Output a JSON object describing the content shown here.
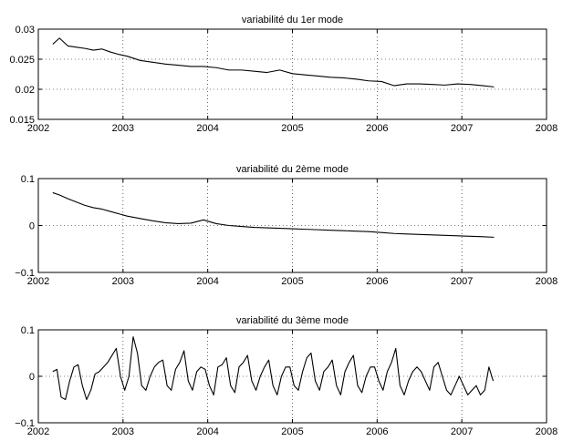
{
  "chart_data": [
    {
      "type": "line",
      "title": "variabilité du 1er mode",
      "xlabel": "",
      "ylabel": "",
      "xlim": [
        2002,
        2008
      ],
      "ylim": [
        0.015,
        0.03
      ],
      "xticks": [
        2002,
        2003,
        2004,
        2005,
        2006,
        2007,
        2008
      ],
      "yticks": [
        0.015,
        0.02,
        0.025,
        0.03
      ],
      "ytick_labels": [
        "0.015",
        "0.02",
        "0.025",
        "0.03"
      ],
      "grid": true,
      "line_color": "#000000",
      "series": [
        {
          "x": [
            2002.17,
            2002.25,
            2002.35,
            2002.45,
            2002.55,
            2002.65,
            2002.75,
            2002.85,
            2002.95,
            2003.05,
            2003.2,
            2003.35,
            2003.5,
            2003.65,
            2003.8,
            2003.95,
            2004.1,
            2004.25,
            2004.4,
            2004.55,
            2004.7,
            2004.85,
            2005.0,
            2005.15,
            2005.3,
            2005.45,
            2005.6,
            2005.75,
            2005.9,
            2006.05,
            2006.2,
            2006.35,
            2006.5,
            2006.65,
            2006.8,
            2006.95,
            2007.1,
            2007.25,
            2007.38
          ],
          "y": [
            0.0275,
            0.0285,
            0.0272,
            0.027,
            0.0268,
            0.0265,
            0.0267,
            0.0262,
            0.0258,
            0.0255,
            0.0248,
            0.0245,
            0.0242,
            0.024,
            0.0238,
            0.0238,
            0.0236,
            0.0232,
            0.0232,
            0.023,
            0.0228,
            0.0232,
            0.0226,
            0.0224,
            0.0222,
            0.022,
            0.0219,
            0.0217,
            0.0214,
            0.0213,
            0.0206,
            0.0209,
            0.0209,
            0.0208,
            0.0207,
            0.0209,
            0.0208,
            0.0206,
            0.0204
          ]
        }
      ]
    },
    {
      "type": "line",
      "title": "variabilité du 2ème mode",
      "xlabel": "",
      "ylabel": "",
      "xlim": [
        2002,
        2008
      ],
      "ylim": [
        -0.1,
        0.1
      ],
      "xticks": [
        2002,
        2003,
        2004,
        2005,
        2006,
        2007,
        2008
      ],
      "yticks": [
        -0.1,
        0,
        0.1
      ],
      "ytick_labels": [
        "−0.1",
        "0",
        "0.1"
      ],
      "grid": true,
      "line_color": "#000000",
      "series": [
        {
          "x": [
            2002.17,
            2002.25,
            2002.35,
            2002.45,
            2002.55,
            2002.65,
            2002.75,
            2002.85,
            2002.95,
            2003.05,
            2003.2,
            2003.35,
            2003.5,
            2003.65,
            2003.8,
            2003.95,
            2004.1,
            2004.25,
            2004.4,
            2004.55,
            2004.7,
            2004.85,
            2005.0,
            2005.15,
            2005.3,
            2005.45,
            2005.6,
            2005.75,
            2005.9,
            2006.05,
            2006.2,
            2006.35,
            2006.5,
            2006.65,
            2006.8,
            2006.95,
            2007.1,
            2007.25,
            2007.38
          ],
          "y": [
            0.07,
            0.065,
            0.057,
            0.05,
            0.043,
            0.038,
            0.035,
            0.03,
            0.025,
            0.02,
            0.015,
            0.01,
            0.006,
            0.004,
            0.005,
            0.012,
            0.004,
            0.0,
            -0.002,
            -0.004,
            -0.005,
            -0.006,
            -0.007,
            -0.008,
            -0.009,
            -0.01,
            -0.011,
            -0.012,
            -0.013,
            -0.015,
            -0.017,
            -0.018,
            -0.019,
            -0.02,
            -0.021,
            -0.022,
            -0.023,
            -0.024,
            -0.025
          ]
        }
      ]
    },
    {
      "type": "line",
      "title": "variabilité du 3ème mode",
      "xlabel": "",
      "ylabel": "",
      "xlim": [
        2002,
        2008
      ],
      "ylim": [
        -0.1,
        0.1
      ],
      "xticks": [
        2002,
        2003,
        2004,
        2005,
        2006,
        2007,
        2008
      ],
      "yticks": [
        -0.1,
        0,
        0.1
      ],
      "ytick_labels": [
        "−0.1",
        "0",
        "0.1"
      ],
      "grid": true,
      "line_color": "#000000",
      "series": [
        {
          "x": [
            2002.17,
            2002.22,
            2002.27,
            2002.32,
            2002.37,
            2002.42,
            2002.47,
            2002.52,
            2002.57,
            2002.62,
            2002.67,
            2002.72,
            2002.77,
            2002.82,
            2002.87,
            2002.92,
            2002.97,
            2003.02,
            2003.07,
            2003.12,
            2003.17,
            2003.22,
            2003.27,
            2003.32,
            2003.37,
            2003.42,
            2003.47,
            2003.52,
            2003.57,
            2003.62,
            2003.67,
            2003.72,
            2003.77,
            2003.82,
            2003.87,
            2003.92,
            2003.97,
            2004.02,
            2004.07,
            2004.12,
            2004.17,
            2004.22,
            2004.27,
            2004.32,
            2004.37,
            2004.42,
            2004.47,
            2004.52,
            2004.57,
            2004.62,
            2004.67,
            2004.72,
            2004.77,
            2004.82,
            2004.87,
            2004.92,
            2004.97,
            2005.02,
            2005.07,
            2005.12,
            2005.17,
            2005.22,
            2005.27,
            2005.32,
            2005.37,
            2005.42,
            2005.47,
            2005.52,
            2005.57,
            2005.62,
            2005.67,
            2005.72,
            2005.77,
            2005.82,
            2005.87,
            2005.92,
            2005.97,
            2006.02,
            2006.07,
            2006.12,
            2006.17,
            2006.22,
            2006.27,
            2006.32,
            2006.37,
            2006.42,
            2006.47,
            2006.52,
            2006.57,
            2006.62,
            2006.67,
            2006.72,
            2006.77,
            2006.82,
            2006.87,
            2006.92,
            2006.97,
            2007.02,
            2007.07,
            2007.12,
            2007.17,
            2007.22,
            2007.27,
            2007.32,
            2007.37
          ],
          "y": [
            0.01,
            0.015,
            -0.045,
            -0.05,
            -0.01,
            0.02,
            0.025,
            -0.02,
            -0.05,
            -0.03,
            0.005,
            0.01,
            0.02,
            0.03,
            0.045,
            0.06,
            0.0,
            -0.03,
            0.0,
            0.085,
            0.05,
            -0.02,
            -0.03,
            0.0,
            0.02,
            0.03,
            0.035,
            -0.02,
            -0.03,
            0.015,
            0.03,
            0.055,
            -0.01,
            -0.03,
            0.01,
            0.02,
            0.015,
            -0.02,
            -0.04,
            0.02,
            0.025,
            0.04,
            -0.02,
            -0.035,
            0.02,
            0.03,
            0.045,
            -0.01,
            -0.03,
            0.0,
            0.02,
            0.035,
            -0.02,
            -0.04,
            0.0,
            0.02,
            0.02,
            -0.02,
            -0.03,
            0.01,
            0.04,
            0.05,
            -0.01,
            -0.03,
            0.01,
            0.02,
            0.035,
            -0.02,
            -0.04,
            0.01,
            0.03,
            0.045,
            -0.02,
            -0.035,
            0.0,
            0.02,
            0.02,
            -0.01,
            -0.03,
            0.01,
            0.03,
            0.06,
            -0.02,
            -0.04,
            -0.01,
            0.01,
            0.02,
            0.01,
            -0.01,
            -0.03,
            0.02,
            0.03,
            0.0,
            -0.03,
            -0.04,
            -0.02,
            0.0,
            -0.02,
            -0.04,
            -0.03,
            -0.02,
            -0.04,
            -0.03,
            0.02,
            -0.01
          ]
        }
      ]
    }
  ]
}
